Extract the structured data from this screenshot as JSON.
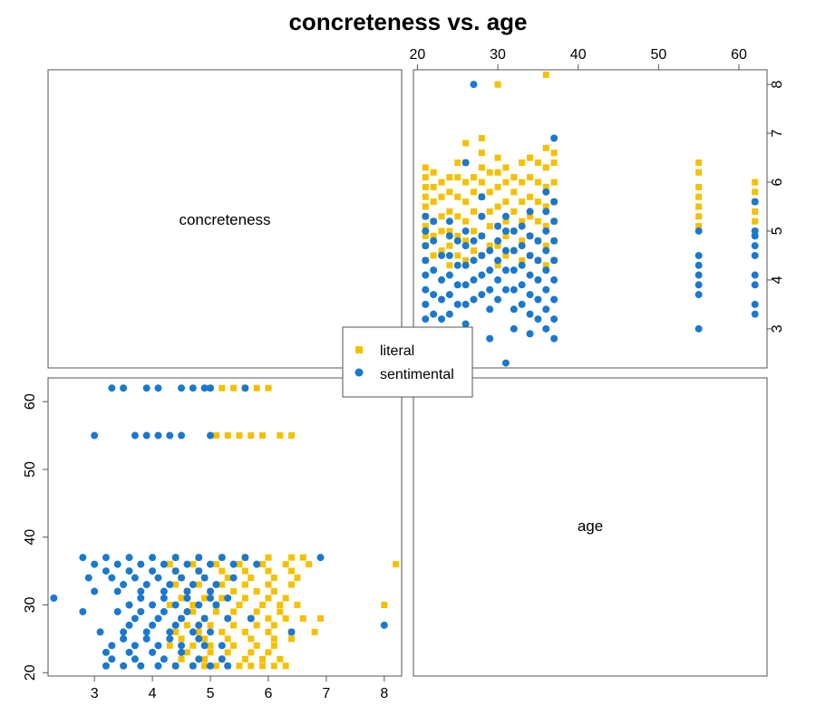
{
  "chart_data": {
    "type": "scatter",
    "title": "concreteness vs. age",
    "variables": [
      "concreteness",
      "age"
    ],
    "axes": {
      "concreteness": {
        "range": [
          2.2,
          8.3
        ],
        "ticks": [
          3,
          4,
          5,
          6,
          7,
          8
        ]
      },
      "age": {
        "range": [
          19.5,
          63.5
        ],
        "ticks": [
          20,
          30,
          40,
          50,
          60
        ]
      }
    },
    "legend": {
      "position": "center",
      "entries": [
        "literal",
        "sentimental"
      ]
    },
    "colors": {
      "literal": "#F5C000",
      "sentimental": "#1A78CF"
    },
    "markers": {
      "literal": "square",
      "sentimental": "circle"
    },
    "series": [
      {
        "name": "literal",
        "points": [
          [
            4.4,
            21
          ],
          [
            4.7,
            21
          ],
          [
            4.9,
            21
          ],
          [
            5.1,
            21
          ],
          [
            5.3,
            21
          ],
          [
            5.5,
            21
          ],
          [
            5.7,
            21
          ],
          [
            5.9,
            21
          ],
          [
            6.1,
            21
          ],
          [
            6.3,
            21
          ],
          [
            4.5,
            22
          ],
          [
            4.9,
            22
          ],
          [
            5.2,
            22
          ],
          [
            5.6,
            22
          ],
          [
            5.9,
            22
          ],
          [
            6.2,
            22
          ],
          [
            4.6,
            23
          ],
          [
            5.0,
            23
          ],
          [
            5.3,
            23
          ],
          [
            5.7,
            23
          ],
          [
            6.0,
            23
          ],
          [
            4.3,
            24
          ],
          [
            4.7,
            24
          ],
          [
            5.0,
            24
          ],
          [
            5.4,
            24
          ],
          [
            5.8,
            24
          ],
          [
            6.1,
            24
          ],
          [
            4.5,
            25
          ],
          [
            4.9,
            25
          ],
          [
            5.3,
            25
          ],
          [
            5.7,
            25
          ],
          [
            6.1,
            25
          ],
          [
            6.4,
            25
          ],
          [
            4.4,
            26
          ],
          [
            4.8,
            26
          ],
          [
            5.2,
            26
          ],
          [
            5.6,
            26
          ],
          [
            6.0,
            26
          ],
          [
            6.4,
            26
          ],
          [
            6.8,
            26
          ],
          [
            4.6,
            27
          ],
          [
            5.0,
            27
          ],
          [
            5.4,
            27
          ],
          [
            5.8,
            27
          ],
          [
            6.1,
            27
          ],
          [
            4.5,
            28
          ],
          [
            4.9,
            28
          ],
          [
            5.3,
            28
          ],
          [
            5.7,
            28
          ],
          [
            6.0,
            28
          ],
          [
            6.3,
            28
          ],
          [
            6.6,
            28
          ],
          [
            6.9,
            28
          ],
          [
            4.7,
            29
          ],
          [
            5.1,
            29
          ],
          [
            5.4,
            29
          ],
          [
            5.8,
            29
          ],
          [
            6.2,
            29
          ],
          [
            4.3,
            30
          ],
          [
            4.7,
            30
          ],
          [
            5.1,
            30
          ],
          [
            5.5,
            30
          ],
          [
            5.9,
            30
          ],
          [
            6.2,
            30
          ],
          [
            6.5,
            30
          ],
          [
            8.0,
            30
          ],
          [
            4.5,
            31
          ],
          [
            4.9,
            31
          ],
          [
            5.2,
            31
          ],
          [
            5.6,
            31
          ],
          [
            6.0,
            31
          ],
          [
            6.3,
            31
          ],
          [
            4.6,
            32
          ],
          [
            5.0,
            32
          ],
          [
            5.4,
            32
          ],
          [
            5.8,
            32
          ],
          [
            6.1,
            32
          ],
          [
            4.4,
            33
          ],
          [
            4.8,
            33
          ],
          [
            5.2,
            33
          ],
          [
            5.6,
            33
          ],
          [
            6.0,
            33
          ],
          [
            6.4,
            33
          ],
          [
            4.5,
            34
          ],
          [
            4.9,
            34
          ],
          [
            5.3,
            34
          ],
          [
            5.7,
            34
          ],
          [
            6.1,
            34
          ],
          [
            6.5,
            34
          ],
          [
            4.4,
            35
          ],
          [
            4.8,
            35
          ],
          [
            5.2,
            35
          ],
          [
            5.6,
            35
          ],
          [
            6.0,
            35
          ],
          [
            6.4,
            35
          ],
          [
            4.3,
            36
          ],
          [
            4.7,
            36
          ],
          [
            5.1,
            36
          ],
          [
            5.5,
            36
          ],
          [
            5.9,
            36
          ],
          [
            6.3,
            36
          ],
          [
            6.7,
            36
          ],
          [
            8.2,
            36
          ],
          [
            4.4,
            37
          ],
          [
            4.8,
            37
          ],
          [
            5.2,
            37
          ],
          [
            5.6,
            37
          ],
          [
            6.0,
            37
          ],
          [
            6.4,
            37
          ],
          [
            6.6,
            37
          ],
          [
            5.1,
            55
          ],
          [
            5.3,
            55
          ],
          [
            5.5,
            55
          ],
          [
            5.7,
            55
          ],
          [
            5.9,
            55
          ],
          [
            6.2,
            55
          ],
          [
            6.4,
            55
          ],
          [
            5.0,
            62
          ],
          [
            5.2,
            62
          ],
          [
            5.4,
            62
          ],
          [
            5.6,
            62
          ],
          [
            5.8,
            62
          ],
          [
            6.0,
            62
          ]
        ]
      },
      {
        "name": "sentimental",
        "points": [
          [
            3.2,
            21
          ],
          [
            3.5,
            21
          ],
          [
            3.8,
            21
          ],
          [
            4.1,
            21
          ],
          [
            4.4,
            21
          ],
          [
            4.7,
            21
          ],
          [
            5.0,
            21
          ],
          [
            5.3,
            21
          ],
          [
            3.3,
            22
          ],
          [
            3.7,
            22
          ],
          [
            4.2,
            22
          ],
          [
            4.8,
            22
          ],
          [
            5.2,
            22
          ],
          [
            3.2,
            23
          ],
          [
            3.6,
            23
          ],
          [
            4.0,
            23
          ],
          [
            4.5,
            23
          ],
          [
            3.3,
            24
          ],
          [
            3.7,
            24
          ],
          [
            4.1,
            24
          ],
          [
            4.5,
            24
          ],
          [
            4.9,
            24
          ],
          [
            5.2,
            24
          ],
          [
            3.5,
            25
          ],
          [
            3.9,
            25
          ],
          [
            4.3,
            25
          ],
          [
            4.8,
            25
          ],
          [
            3.1,
            26
          ],
          [
            3.5,
            26
          ],
          [
            3.9,
            26
          ],
          [
            4.3,
            26
          ],
          [
            4.7,
            26
          ],
          [
            5.0,
            26
          ],
          [
            6.4,
            26
          ],
          [
            3.6,
            27
          ],
          [
            4.0,
            27
          ],
          [
            4.4,
            27
          ],
          [
            4.8,
            27
          ],
          [
            8.0,
            27
          ],
          [
            3.7,
            28
          ],
          [
            4.1,
            28
          ],
          [
            4.5,
            28
          ],
          [
            4.9,
            28
          ],
          [
            5.3,
            28
          ],
          [
            5.7,
            28
          ],
          [
            3.4,
            29
          ],
          [
            3.8,
            29
          ],
          [
            4.2,
            29
          ],
          [
            4.6,
            29
          ],
          [
            2.8,
            29
          ],
          [
            3.6,
            30
          ],
          [
            4.0,
            30
          ],
          [
            4.4,
            30
          ],
          [
            4.8,
            30
          ],
          [
            5.1,
            30
          ],
          [
            2.3,
            31
          ],
          [
            3.8,
            31
          ],
          [
            4.2,
            31
          ],
          [
            4.6,
            31
          ],
          [
            5.0,
            31
          ],
          [
            5.3,
            31
          ],
          [
            3.0,
            32
          ],
          [
            3.4,
            32
          ],
          [
            3.8,
            32
          ],
          [
            4.2,
            32
          ],
          [
            4.6,
            32
          ],
          [
            5.0,
            32
          ],
          [
            3.5,
            33
          ],
          [
            3.9,
            33
          ],
          [
            4.3,
            33
          ],
          [
            4.7,
            33
          ],
          [
            5.1,
            33
          ],
          [
            2.9,
            34
          ],
          [
            3.3,
            34
          ],
          [
            3.7,
            34
          ],
          [
            4.1,
            34
          ],
          [
            4.5,
            34
          ],
          [
            4.9,
            34
          ],
          [
            5.4,
            34
          ],
          [
            3.2,
            35
          ],
          [
            3.6,
            35
          ],
          [
            4.0,
            35
          ],
          [
            4.4,
            35
          ],
          [
            4.8,
            35
          ],
          [
            3.0,
            36
          ],
          [
            3.4,
            36
          ],
          [
            3.8,
            36
          ],
          [
            4.2,
            36
          ],
          [
            4.6,
            36
          ],
          [
            5.0,
            36
          ],
          [
            5.4,
            36
          ],
          [
            5.8,
            36
          ],
          [
            2.8,
            37
          ],
          [
            3.2,
            37
          ],
          [
            3.6,
            37
          ],
          [
            4.0,
            37
          ],
          [
            4.4,
            37
          ],
          [
            4.8,
            37
          ],
          [
            5.2,
            37
          ],
          [
            5.6,
            37
          ],
          [
            6.9,
            37
          ],
          [
            3.0,
            55
          ],
          [
            3.7,
            55
          ],
          [
            3.9,
            55
          ],
          [
            4.1,
            55
          ],
          [
            4.3,
            55
          ],
          [
            4.5,
            55
          ],
          [
            5.0,
            55
          ],
          [
            3.3,
            62
          ],
          [
            3.5,
            62
          ],
          [
            3.9,
            62
          ],
          [
            4.1,
            62
          ],
          [
            4.5,
            62
          ],
          [
            4.7,
            62
          ],
          [
            4.9,
            62
          ],
          [
            5.0,
            62
          ],
          [
            5.6,
            62
          ]
        ]
      }
    ]
  }
}
